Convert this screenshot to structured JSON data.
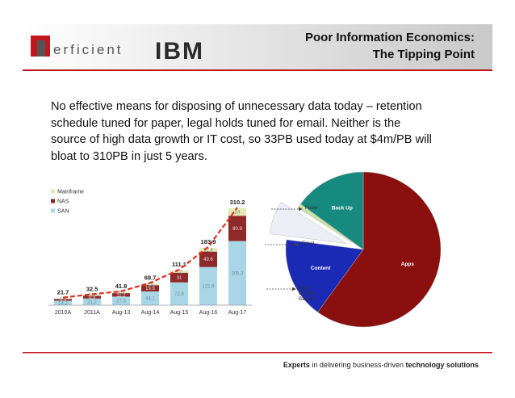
{
  "header": {
    "logo": "erficient",
    "partner": "IBM",
    "title": [
      "Poor Information Economics:",
      "The Tipping Point"
    ]
  },
  "body": "No effective means for disposing of unnecessary data today – retention schedule tuned for paper, legal holds tuned for email. Neither is the source of high data growth or IT cost, so 33PB used today at $4m/PB will bloat to 310PB in just 5 years.",
  "chart_data": [
    {
      "type": "bar",
      "stacked": true,
      "categories": [
        "2010A",
        "2011A",
        "Aug-13",
        "Aug-14",
        "Aug-15",
        "Aug-16",
        "Aug-17"
      ],
      "series": [
        {
          "name": "SAN",
          "color": "#a9d6e6",
          "values": [
            14.2,
            21.2,
            27.3,
            44.1,
            72.9,
            121.9,
            205.3
          ]
        },
        {
          "name": "NAS",
          "color": "#8e2a2a",
          "values": [
            5.9,
            8.9,
            11.2,
            19.8,
            31.0,
            49.6,
            80.9
          ]
        },
        {
          "name": "Mainframe",
          "color": "#e6e9b4",
          "values": [
            1.6,
            2.4,
            3.3,
            4.8,
            7.2,
            12.4,
            24.0
          ]
        }
      ],
      "totals": [
        21.7,
        32.5,
        41.8,
        68.7,
        111.1,
        183.9,
        310.2
      ],
      "trend_color": "#e0301e"
    },
    {
      "type": "pie",
      "categories": [
        "Apps",
        "Content",
        null,
        null,
        "Back Up"
      ],
      "values": [
        60,
        17,
        7,
        1,
        15
      ],
      "colors": [
        "#8a0f0f",
        "#1b2ab5",
        "#eeeef6",
        "#c9e2a4",
        "#178a80"
      ],
      "exploded": 2,
      "annotations": [
        "Paper",
        "Email",
        "Apps, Content, Backup"
      ]
    }
  ],
  "footer": [
    "Experts",
    " in delivering business-driven ",
    "technology solutions"
  ]
}
